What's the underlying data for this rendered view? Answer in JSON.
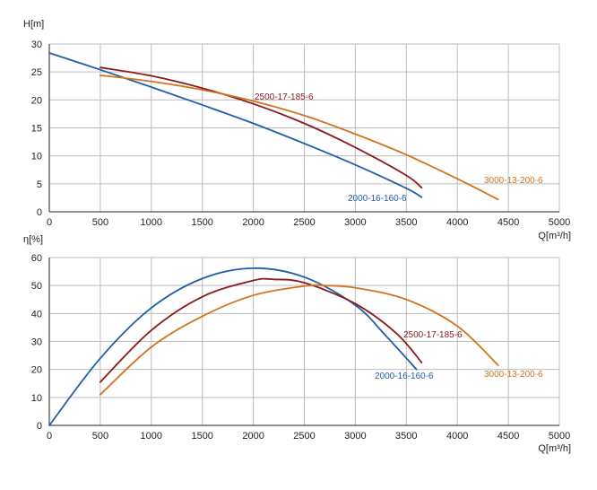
{
  "chart_data": [
    {
      "type": "line",
      "ylabel": "H[m]",
      "xlabel": "Q[m³/h]",
      "xlim": [
        0,
        5000
      ],
      "ylim": [
        0,
        30
      ],
      "x_ticks": [
        0,
        500,
        1000,
        1500,
        2000,
        2500,
        3000,
        3500,
        4000,
        4500,
        5000
      ],
      "y_ticks": [
        0,
        5,
        10,
        15,
        20,
        25,
        30
      ],
      "grid": true,
      "series": [
        {
          "name": "2000-16-160-6",
          "color": "#1f5fa8",
          "x": [
            0,
            500,
            1000,
            1500,
            2000,
            2500,
            3000,
            3500,
            3650
          ],
          "y": [
            28.4,
            25.4,
            22.3,
            19.1,
            15.8,
            12.2,
            8.4,
            4.2,
            2.6
          ]
        },
        {
          "name": "2500-17-185-6",
          "color": "#8b1a1a",
          "x": [
            500,
            1000,
            1500,
            2000,
            2500,
            3000,
            3500,
            3650
          ],
          "y": [
            25.8,
            24.3,
            22.1,
            19.3,
            15.8,
            11.5,
            6.5,
            4.3
          ]
        },
        {
          "name": "3000-13-200-6",
          "color": "#d2731f",
          "x": [
            500,
            1000,
            1500,
            2000,
            2500,
            3000,
            3500,
            4000,
            4400
          ],
          "y": [
            24.4,
            23.3,
            21.8,
            19.8,
            17.2,
            13.9,
            10.2,
            5.9,
            2.2
          ]
        }
      ]
    },
    {
      "type": "line",
      "ylabel": "η[%]",
      "xlabel": "Q[m³/h]",
      "xlim": [
        0,
        5000
      ],
      "ylim": [
        0,
        60
      ],
      "x_ticks": [
        0,
        500,
        1000,
        1500,
        2000,
        2500,
        3000,
        3500,
        4000,
        4500,
        5000
      ],
      "y_ticks": [
        0,
        10,
        20,
        30,
        40,
        50,
        60
      ],
      "grid": true,
      "series": [
        {
          "name": "2000-16-160-6",
          "color": "#1f5fa8",
          "x": [
            0,
            500,
            1000,
            1500,
            2000,
            2500,
            3000,
            3300,
            3600
          ],
          "y": [
            0,
            24,
            42,
            52.5,
            56.2,
            53,
            43,
            32,
            20
          ]
        },
        {
          "name": "2500-17-185-6",
          "color": "#8b1a1a",
          "x": [
            500,
            1000,
            1500,
            2000,
            2200,
            2500,
            3000,
            3400,
            3650
          ],
          "y": [
            15.5,
            34,
            46,
            51.8,
            52.2,
            51,
            43.5,
            33,
            22.5
          ]
        },
        {
          "name": "3000-13-200-6",
          "color": "#d2731f",
          "x": [
            500,
            1000,
            1500,
            2000,
            2500,
            2700,
            3000,
            3500,
            4000,
            4400
          ],
          "y": [
            11,
            28,
            39,
            46.5,
            49.8,
            50,
            49.2,
            45,
            35.5,
            21.5
          ]
        }
      ]
    }
  ]
}
